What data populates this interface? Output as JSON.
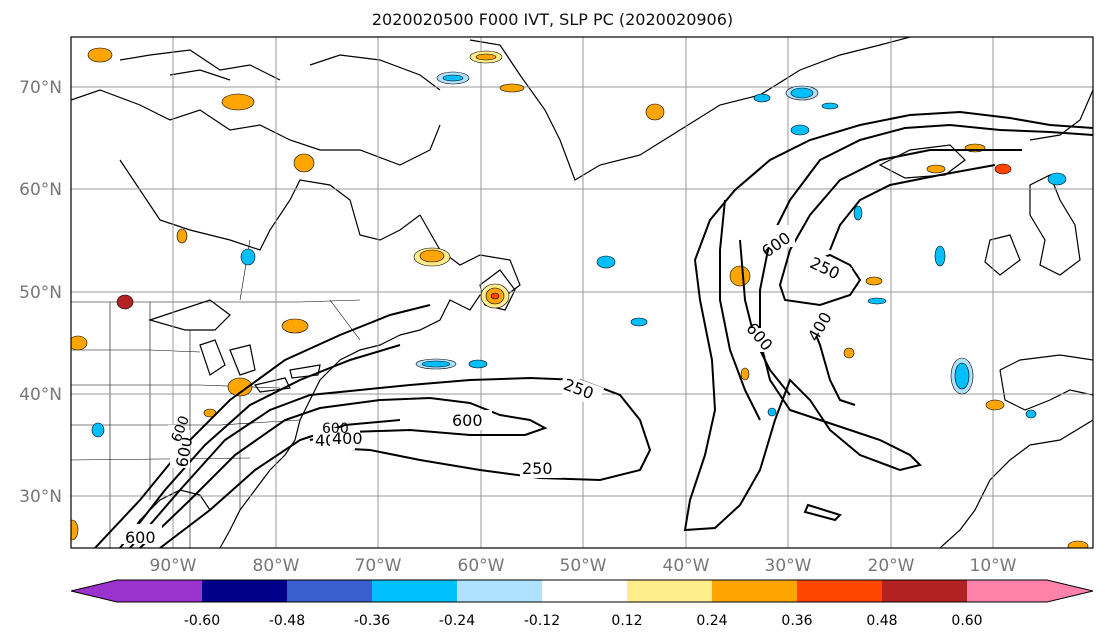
{
  "title": "2020020500 F000 IVT, SLP PC (2020020906)",
  "map": {
    "lat_labels": [
      "70°N",
      "60°N",
      "50°N",
      "40°N",
      "30°N"
    ],
    "lon_labels": [
      "90°W",
      "80°W",
      "70°W",
      "60°W",
      "50°W",
      "40°W",
      "30°W",
      "20°W",
      "10°W"
    ],
    "contour_labels": [
      "600",
      "250",
      "400",
      "600",
      "250",
      "600",
      "250",
      "400",
      "600",
      "600",
      "600",
      "400",
      "600"
    ]
  },
  "colorbar": {
    "ticks": [
      "-0.60",
      "-0.48",
      "-0.36",
      "-0.24",
      "-0.12",
      "0.12",
      "0.24",
      "0.36",
      "0.48",
      "0.60"
    ],
    "colors": [
      "#9a32cd",
      "#00008b",
      "#3a5fcd",
      "#00bfff",
      "#b0e2ff",
      "#ffffff",
      "#ffec8b",
      "#ffa500",
      "#ff4500",
      "#b22222",
      "#ff82ab"
    ]
  }
}
